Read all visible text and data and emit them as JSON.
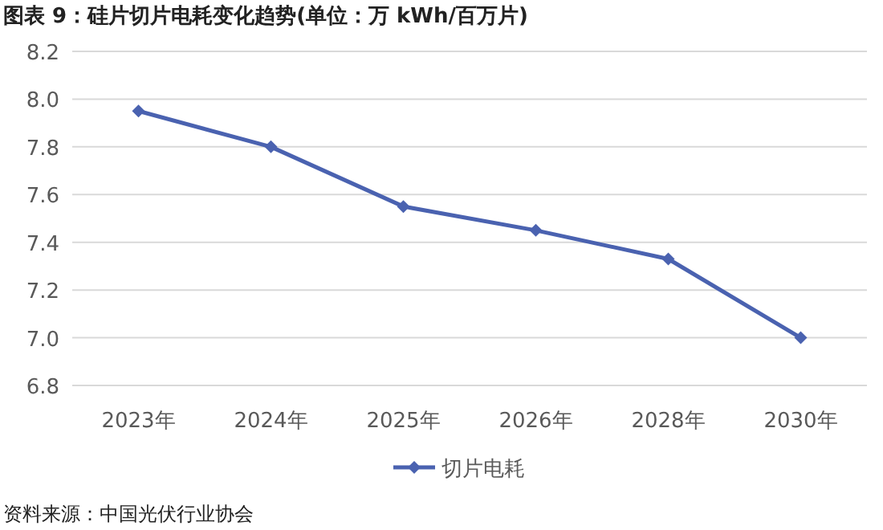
{
  "chart_data": {
    "type": "line",
    "title": "图表 9：硅片切片电耗变化趋势(单位：万 kWh/百万片)",
    "categories": [
      "2023年",
      "2024年",
      "2025年",
      "2026年",
      "2028年",
      "2030年"
    ],
    "series": [
      {
        "name": "切片电耗",
        "color": "#4a62b0",
        "values": [
          7.95,
          7.8,
          7.55,
          7.45,
          7.33,
          7.0
        ]
      }
    ],
    "ylim": [
      6.8,
      8.2
    ],
    "yticks": [
      {
        "value": 6.8,
        "label": "6.8"
      },
      {
        "value": 7.0,
        "label": "7.0"
      },
      {
        "value": 7.2,
        "label": "7.2"
      },
      {
        "value": 7.4,
        "label": "7.4"
      },
      {
        "value": 7.6,
        "label": "7.6"
      },
      {
        "value": 7.8,
        "label": "7.8"
      },
      {
        "value": 8.0,
        "label": "8.0"
      },
      {
        "value": 8.2,
        "label": "8.2"
      }
    ],
    "grid": "y",
    "legend": "bottom",
    "marker": "diamond",
    "annotations": [
      "资料来源：中国光伏行业协会"
    ]
  }
}
